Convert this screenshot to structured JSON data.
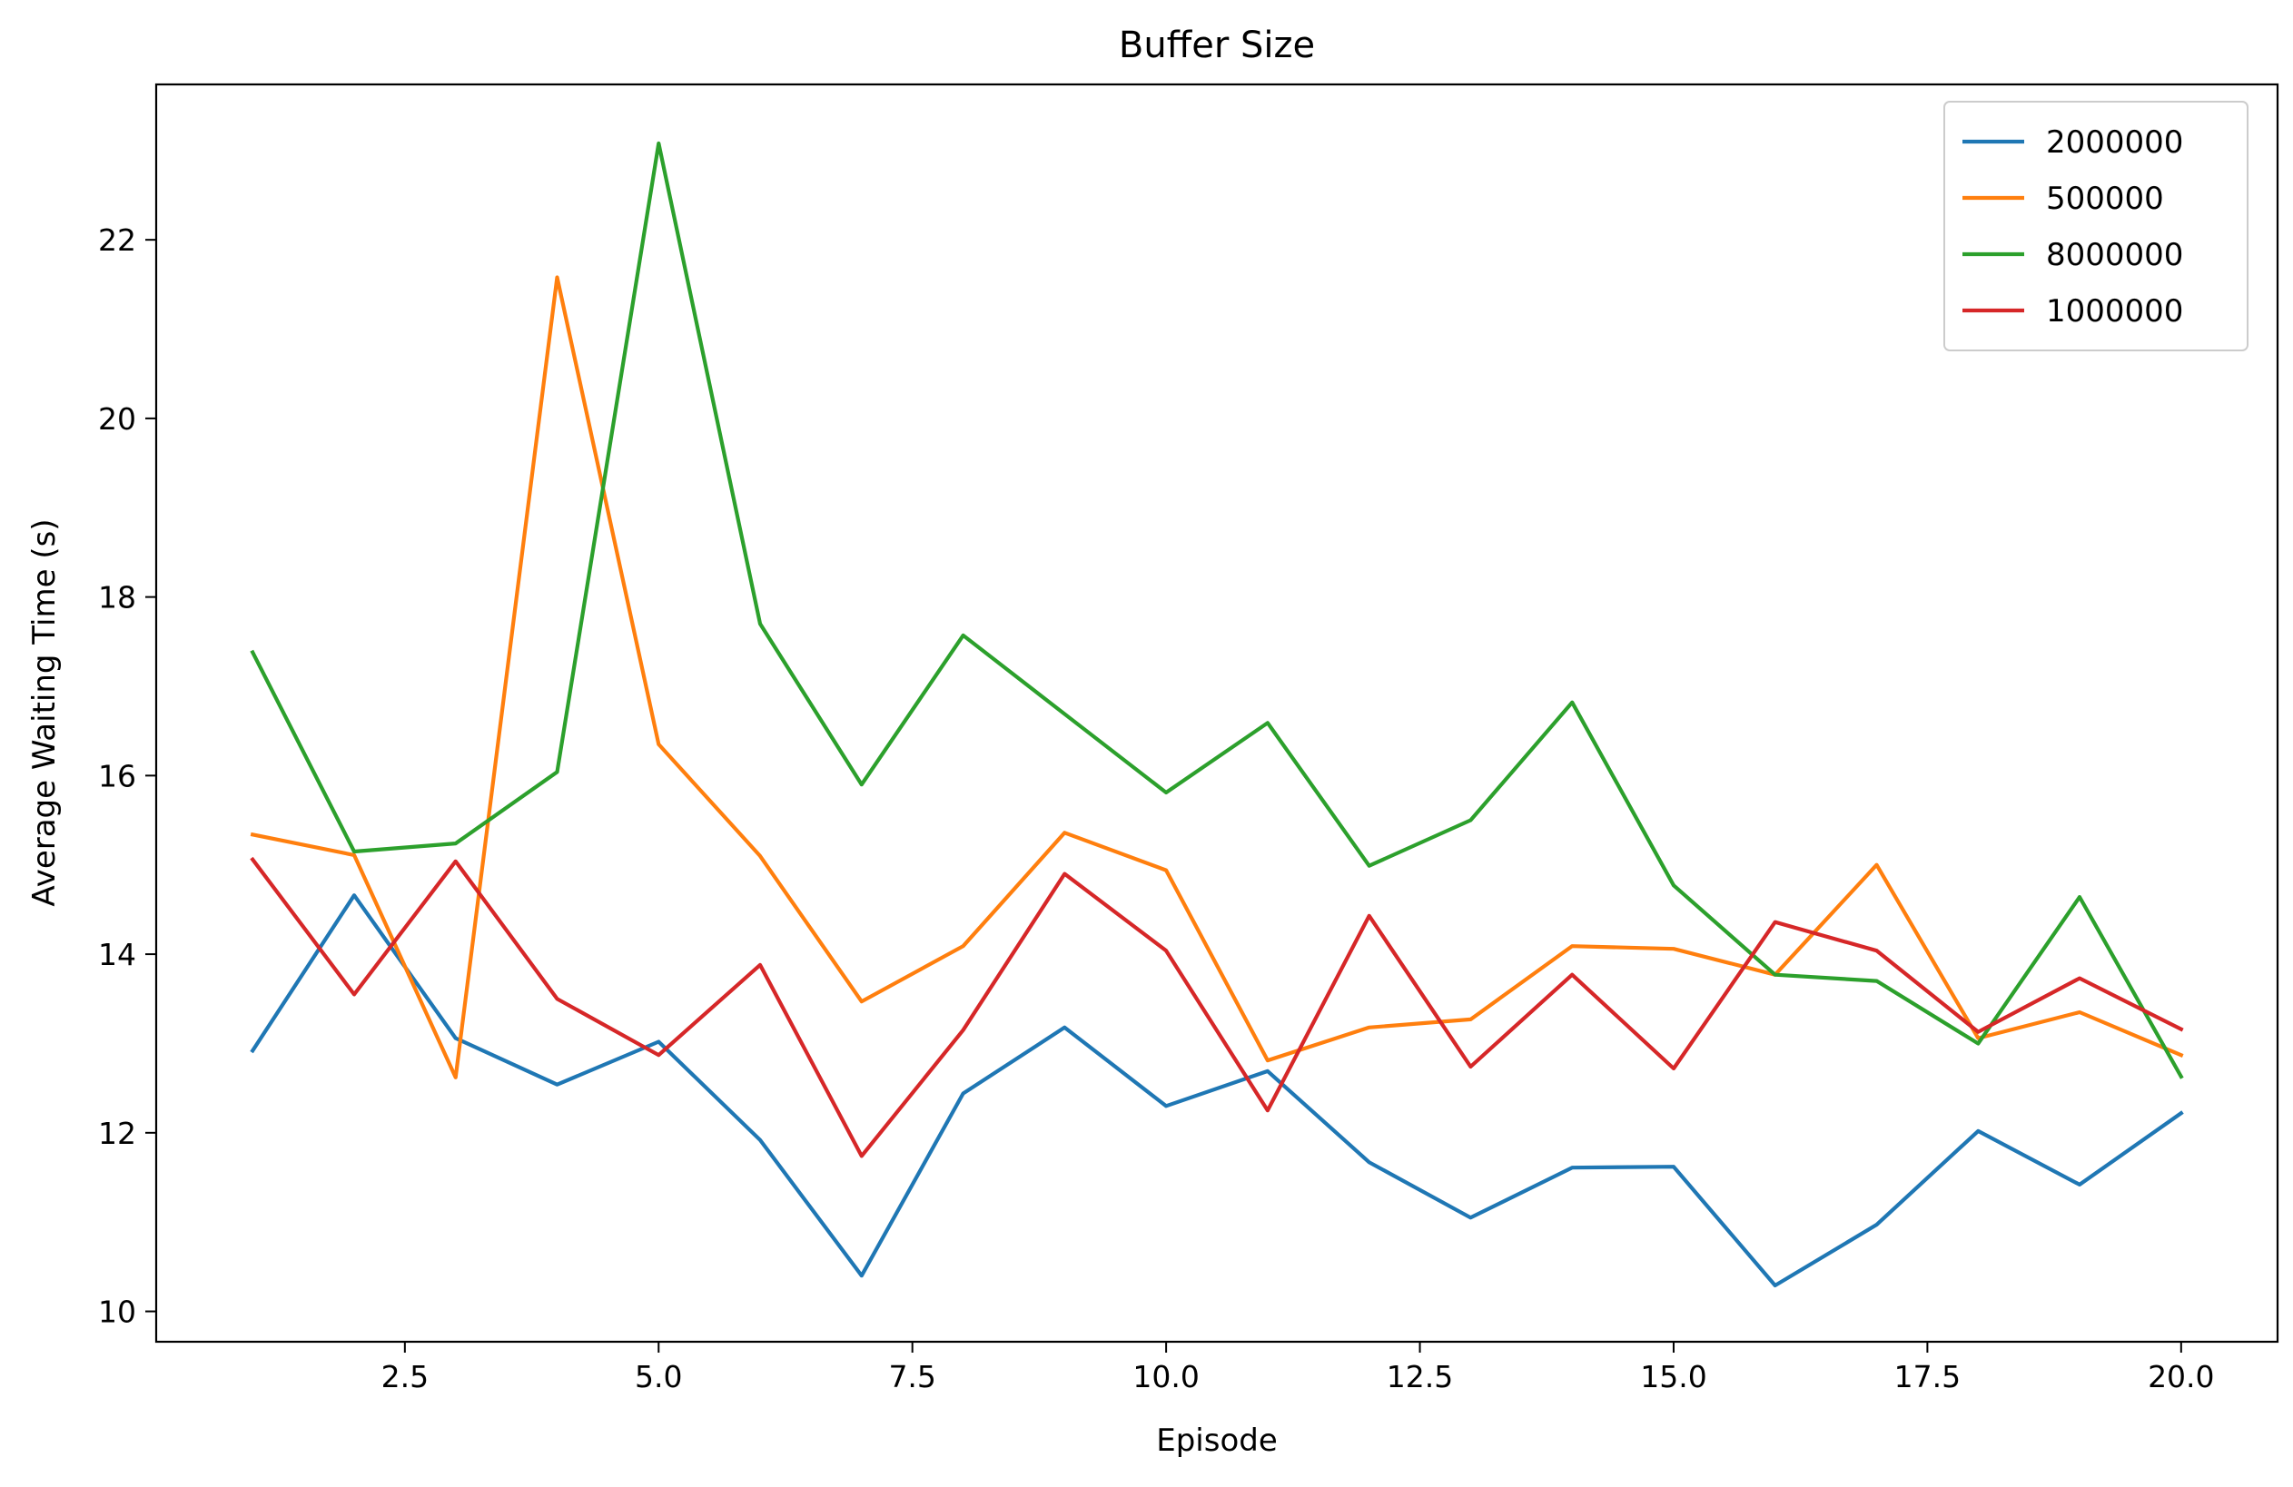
{
  "chart_data": {
    "type": "line",
    "title": "Buffer Size",
    "xlabel": "Episode",
    "ylabel": "Average Waiting Time (s)",
    "xlim": [
      0.05,
      20.95
    ],
    "ylim": [
      9.66,
      23.74
    ],
    "xticks": [
      2.5,
      5.0,
      7.5,
      10.0,
      12.5,
      15.0,
      17.5,
      20.0
    ],
    "xtick_labels": [
      "2.5",
      "5.0",
      "7.5",
      "10.0",
      "12.5",
      "15.0",
      "17.5",
      "20.0"
    ],
    "yticks": [
      10,
      12,
      14,
      16,
      18,
      20,
      22
    ],
    "ytick_labels": [
      "10",
      "12",
      "14",
      "16",
      "18",
      "20",
      "22"
    ],
    "grid": false,
    "legend_position": "top-right",
    "x": [
      1,
      2,
      3,
      4,
      5,
      6,
      7,
      8,
      9,
      10,
      11,
      12,
      13,
      14,
      15,
      16,
      17,
      18,
      19,
      20
    ],
    "series": [
      {
        "name": "2000000",
        "color": "#1f77b4",
        "values": [
          12.92,
          14.66,
          13.06,
          12.54,
          13.02,
          11.92,
          10.4,
          12.44,
          13.18,
          12.3,
          12.69,
          11.67,
          11.05,
          11.61,
          11.62,
          10.29,
          10.97,
          12.02,
          11.42,
          12.22
        ]
      },
      {
        "name": "500000",
        "color": "#ff7f0e",
        "values": [
          15.34,
          15.11,
          12.62,
          21.58,
          16.35,
          15.1,
          13.47,
          14.09,
          15.36,
          14.94,
          12.81,
          13.18,
          13.27,
          14.09,
          14.06,
          13.77,
          15.0,
          13.06,
          13.35,
          12.87
        ]
      },
      {
        "name": "8000000",
        "color": "#2ca02c",
        "values": [
          17.38,
          15.15,
          15.24,
          16.04,
          23.08,
          17.7,
          15.9,
          17.57,
          16.69,
          15.81,
          16.59,
          14.99,
          15.5,
          16.82,
          14.77,
          13.77,
          13.7,
          13.0,
          14.64,
          12.63
        ]
      },
      {
        "name": "1000000",
        "color": "#d62728",
        "values": [
          15.06,
          13.55,
          15.04,
          13.5,
          12.87,
          13.88,
          11.74,
          13.15,
          14.9,
          14.04,
          12.25,
          14.43,
          12.74,
          13.77,
          12.72,
          14.36,
          14.04,
          13.13,
          13.73,
          13.16
        ]
      }
    ]
  }
}
